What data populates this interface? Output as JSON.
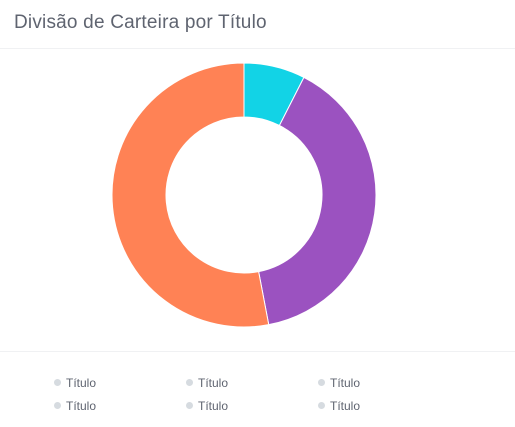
{
  "card": {
    "title": "Divisão de Carteira por Título"
  },
  "chart_data": {
    "type": "pie",
    "title": "Divisão de Carteira por Título",
    "donut": true,
    "slices": [
      {
        "value": 7.5,
        "color": "#12d3e6"
      },
      {
        "value": 39.5,
        "color": "#9b52c0"
      },
      {
        "value": 53,
        "color": "#ff8255"
      }
    ],
    "legend_placement": "bottom"
  },
  "legend": {
    "dot_color": "#d6dbe0",
    "items": [
      {
        "label": "Título"
      },
      {
        "label": "Título"
      },
      {
        "label": "Título"
      },
      {
        "label": "Título"
      },
      {
        "label": "Título"
      },
      {
        "label": "Título"
      }
    ]
  }
}
